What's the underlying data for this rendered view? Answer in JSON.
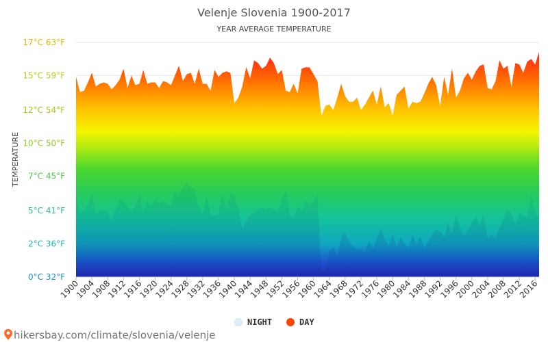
{
  "chart_data": {
    "type": "area",
    "title": "Velenje Slovenia 1900-2017",
    "subtitle": "YEAR AVERAGE TEMPERATURE",
    "ylabel": "TEMPERATURE",
    "xlabel": "",
    "ylim": [
      0,
      17
    ],
    "grid": true,
    "legend_placement": "bottom-center",
    "y_ticks": [
      {
        "value": 0,
        "label": "0°C 32°F",
        "color": "#1e8fc8"
      },
      {
        "value": 2.4,
        "label": "2°C 36°F",
        "color": "#20b3b8"
      },
      {
        "value": 4.8,
        "label": "5°C 41°F",
        "color": "#2bbf9a"
      },
      {
        "value": 7.3,
        "label": "7°C 45°F",
        "color": "#4cc84a"
      },
      {
        "value": 9.7,
        "label": "10°C 50°F",
        "color": "#8ccf25"
      },
      {
        "value": 12.1,
        "label": "12°C 54°F",
        "color": "#a8c81c"
      },
      {
        "value": 14.6,
        "label": "15°C 59°F",
        "color": "#b9cc1a"
      },
      {
        "value": 17,
        "label": "17°C 63°F",
        "color": "#e0b800"
      }
    ],
    "x_tick_labels": [
      "1900",
      "1904",
      "1908",
      "1912",
      "1916",
      "1920",
      "1924",
      "1928",
      "1932",
      "1936",
      "1940",
      "1944",
      "1948",
      "1952",
      "1956",
      "1960",
      "1964",
      "1968",
      "1972",
      "1976",
      "1980",
      "1984",
      "1988",
      "1992",
      "1996",
      "2000",
      "2004",
      "2008",
      "2012",
      "2016"
    ],
    "x": [
      1900,
      1901,
      1902,
      1903,
      1904,
      1905,
      1906,
      1907,
      1908,
      1909,
      1910,
      1911,
      1912,
      1913,
      1914,
      1915,
      1916,
      1917,
      1918,
      1919,
      1920,
      1921,
      1922,
      1923,
      1924,
      1925,
      1926,
      1927,
      1928,
      1929,
      1930,
      1931,
      1932,
      1933,
      1934,
      1935,
      1936,
      1937,
      1938,
      1939,
      1940,
      1941,
      1942,
      1943,
      1944,
      1945,
      1946,
      1947,
      1948,
      1949,
      1950,
      1951,
      1952,
      1953,
      1954,
      1955,
      1956,
      1957,
      1958,
      1959,
      1960,
      1961,
      1962,
      1963,
      1964,
      1965,
      1966,
      1967,
      1968,
      1969,
      1970,
      1971,
      1972,
      1973,
      1974,
      1975,
      1976,
      1977,
      1978,
      1979,
      1980,
      1981,
      1982,
      1983,
      1984,
      1985,
      1986,
      1987,
      1988,
      1989,
      1990,
      1991,
      1992,
      1993,
      1994,
      1995,
      1996,
      1997,
      1998,
      1999,
      2000,
      2001,
      2002,
      2003,
      2004,
      2005,
      2006,
      2007,
      2008,
      2009,
      2010,
      2011,
      2012,
      2013,
      2014,
      2015,
      2016,
      2017
    ],
    "series": [
      {
        "name": "DAY",
        "color": "#ff4500",
        "values": [
          14.5,
          13.4,
          13.5,
          14.1,
          14.8,
          13.8,
          14.0,
          14.1,
          14.0,
          13.6,
          13.9,
          14.3,
          15.1,
          13.7,
          14.6,
          13.9,
          14.0,
          15.0,
          14.0,
          14.1,
          14.1,
          13.7,
          14.2,
          14.1,
          13.9,
          14.6,
          15.3,
          14.2,
          14.7,
          14.8,
          14.0,
          15.1,
          14.0,
          14.0,
          13.5,
          15.0,
          14.5,
          14.8,
          14.9,
          14.8,
          12.6,
          13.0,
          13.8,
          15.2,
          14.4,
          15.7,
          15.5,
          15.1,
          15.3,
          15.9,
          15.5,
          14.7,
          15.0,
          13.5,
          13.4,
          14.0,
          13.3,
          15.1,
          15.2,
          15.2,
          14.7,
          14.2,
          11.7,
          12.4,
          12.5,
          12.1,
          13.0,
          14.0,
          13.1,
          12.7,
          12.7,
          13.0,
          12.1,
          12.5,
          13.0,
          13.5,
          12.5,
          13.8,
          12.3,
          12.6,
          11.7,
          13.2,
          13.5,
          13.8,
          12.2,
          12.7,
          12.6,
          12.7,
          13.3,
          14.0,
          14.5,
          13.9,
          12.4,
          14.5,
          13.2,
          15.1,
          13.0,
          13.5,
          14.4,
          14.8,
          14.3,
          14.9,
          15.3,
          15.4,
          13.7,
          13.6,
          14.2,
          15.7,
          15.1,
          15.3,
          13.8,
          15.5,
          15.4,
          14.8,
          15.6,
          15.8,
          15.4,
          16.3
        ]
      },
      {
        "name": "NIGHT",
        "color": "#d8eef7",
        "values": [
          5.9,
          4.6,
          4.8,
          5.2,
          6.1,
          4.6,
          4.8,
          4.9,
          4.7,
          4.1,
          4.9,
          5.7,
          5.5,
          5.1,
          4.8,
          5.2,
          6.0,
          4.7,
          5.6,
          5.1,
          5.6,
          5.3,
          5.5,
          5.3,
          5.2,
          6.3,
          6.0,
          6.5,
          6.8,
          6.5,
          6.4,
          5.0,
          4.6,
          6.0,
          4.5,
          4.5,
          4.5,
          6.1,
          4.8,
          6.0,
          5.9,
          4.9,
          3.5,
          4.0,
          4.5,
          4.7,
          4.9,
          5.0,
          4.9,
          5.0,
          4.9,
          4.7,
          5.6,
          6.3,
          4.5,
          4.3,
          5.1,
          4.8,
          5.5,
          5.3,
          5.4,
          6.0,
          0.5,
          0.5,
          1.9,
          2.2,
          1.5,
          2.9,
          3.2,
          2.6,
          2.2,
          2.0,
          2.0,
          1.8,
          2.6,
          2.1,
          2.8,
          3.6,
          2.7,
          2.3,
          3.1,
          2.2,
          2.9,
          2.4,
          2.1,
          3.1,
          2.4,
          2.9,
          2.1,
          2.6,
          3.1,
          3.4,
          3.3,
          2.9,
          3.9,
          3.1,
          4.6,
          3.6,
          3.0,
          3.4,
          3.9,
          4.4,
          3.7,
          4.6,
          2.8,
          3.1,
          2.8,
          3.6,
          4.2,
          4.9,
          4.6,
          3.8,
          4.6,
          4.5,
          4.3,
          6.0,
          4.6,
          4.3
        ]
      }
    ],
    "legend": [
      {
        "label": "NIGHT",
        "color": "#d8eef7"
      },
      {
        "label": "DAY",
        "color": "#ff4500"
      }
    ]
  },
  "footer": {
    "source_text": "hikersbay.com/climate/slovenia/velenje"
  }
}
